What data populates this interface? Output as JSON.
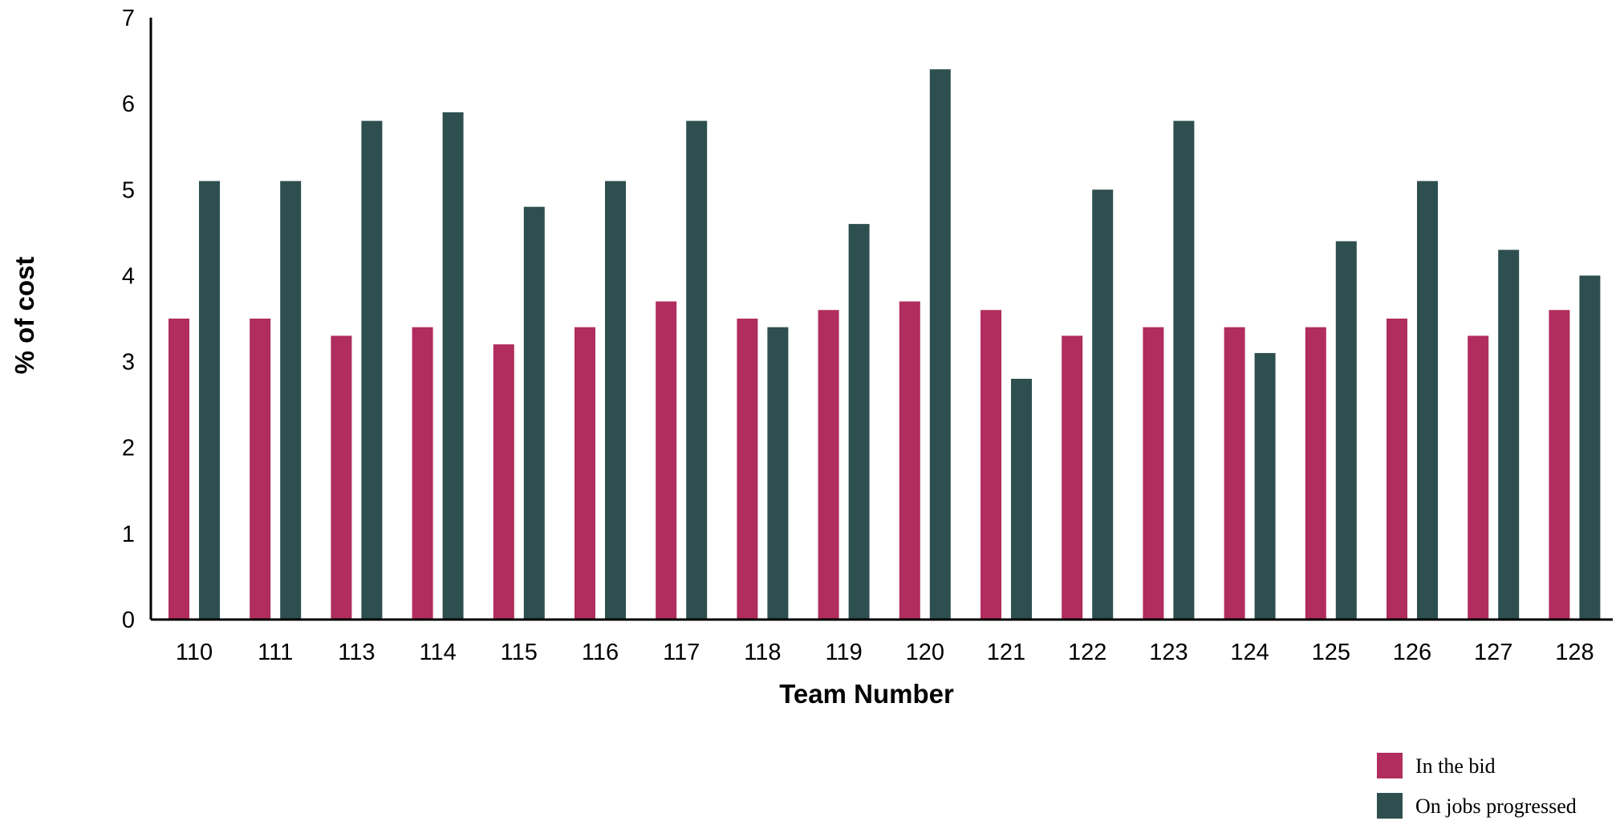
{
  "chart_data": {
    "type": "bar",
    "title": "",
    "xlabel": "Team Number",
    "ylabel": "% of cost",
    "ylim": [
      0,
      7
    ],
    "yticks": [
      0,
      1,
      2,
      3,
      4,
      5,
      6,
      7
    ],
    "grid": false,
    "legend_position": "bottom-right",
    "categories": [
      "110",
      "111",
      "113",
      "114",
      "115",
      "116",
      "117",
      "118",
      "119",
      "120",
      "121",
      "122",
      "123",
      "124",
      "125",
      "126",
      "127",
      "128"
    ],
    "series": [
      {
        "name": "In the bid",
        "color": "#B02D5E",
        "values": [
          3.5,
          3.5,
          3.3,
          3.4,
          3.2,
          3.4,
          3.7,
          3.5,
          3.6,
          3.7,
          3.6,
          3.3,
          3.4,
          3.4,
          3.4,
          3.5,
          3.3,
          3.6
        ]
      },
      {
        "name": "On jobs progressed",
        "color": "#2E4F4F",
        "values": [
          5.1,
          5.1,
          5.8,
          5.9,
          4.8,
          5.1,
          5.8,
          3.4,
          4.6,
          6.4,
          2.8,
          5.0,
          5.8,
          3.1,
          4.4,
          5.1,
          4.3,
          4.0
        ]
      }
    ]
  }
}
